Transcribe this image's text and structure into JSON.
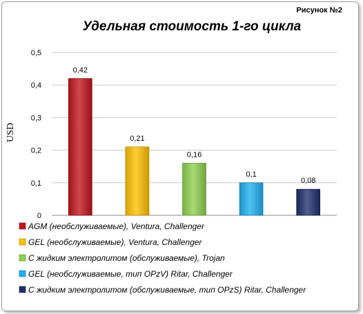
{
  "figure_label": "Рисунок  №2",
  "chart_data": {
    "type": "bar",
    "title": "Удельная стоимость 1-го цикла",
    "ylabel": "USD",
    "xlabel": "",
    "ylim": [
      0,
      0.5
    ],
    "ytick_values": [
      0,
      0.1,
      0.2,
      0.3,
      0.4,
      0.5
    ],
    "ytick_labels": [
      "0",
      "0,1",
      "0,2",
      "0,3",
      "0,4",
      "0,5"
    ],
    "grid": true,
    "legend_position": "bottom",
    "categories": [
      "AGM (необслуживаемые), Ventura, Challenger",
      "GEL (необслуживаемые), Ventura, Challenger",
      "С жидким электролитом (обслуживаемые), Trojan",
      "GEL (необслуживаемые, тип OPzV) Ritar, Challenger",
      "С жидким электролитом (обслуживаемые, тип OPzS) Ritar, Challenger"
    ],
    "values": [
      0.42,
      0.21,
      0.16,
      0.1,
      0.08
    ],
    "value_labels": [
      "0,42",
      "0,21",
      "0,16",
      "0,1",
      "0,08"
    ],
    "colors": [
      "#c0141c",
      "#ffc000",
      "#8ed04e",
      "#1fb0ef",
      "#1f2f6b"
    ]
  }
}
